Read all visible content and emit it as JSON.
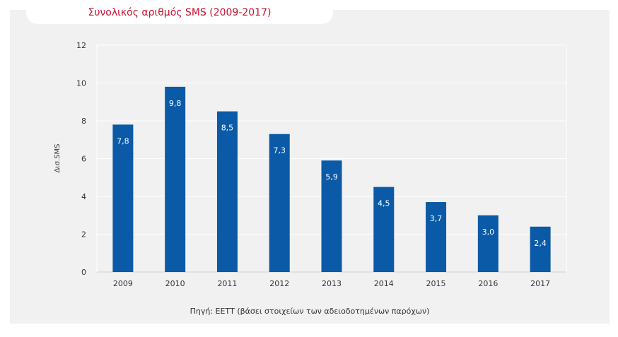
{
  "chart_data": {
    "type": "bar",
    "title": "Συνολικός αριθμός SMS (2009-2017)",
    "ylabel": "Δισ.SMS",
    "xlabel": "",
    "categories": [
      "2009",
      "2010",
      "2011",
      "2012",
      "2013",
      "2014",
      "2015",
      "2016",
      "2017"
    ],
    "values": [
      7.8,
      9.8,
      8.5,
      7.3,
      5.9,
      4.5,
      3.7,
      3.0,
      2.4
    ],
    "value_labels": [
      "7,8",
      "9,8",
      "8,5",
      "7,3",
      "5,9",
      "4,5",
      "3,7",
      "3,0",
      "2,4"
    ],
    "ylim": [
      0,
      12
    ],
    "yticks": [
      0,
      2,
      4,
      6,
      8,
      10,
      12
    ],
    "grid": true,
    "bar_color": "#0a5aa8",
    "source": "Πηγή: ΕΕΤΤ (βάσει στοιχείων των αδειοδοτημένων παρόχων)"
  }
}
